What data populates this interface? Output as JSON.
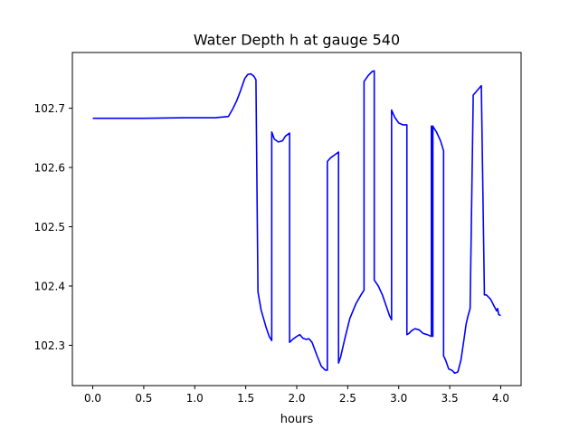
{
  "chart_data": {
    "type": "line",
    "title": "Water Depth h at gauge 540",
    "xlabel": "hours",
    "ylabel": "",
    "xlim": [
      -0.2,
      4.2
    ],
    "ylim": [
      102.232,
      102.794
    ],
    "xticks": [
      0.0,
      0.5,
      1.0,
      1.5,
      2.0,
      2.5,
      3.0,
      3.5,
      4.0
    ],
    "xtick_labels": [
      "0.0",
      "0.5",
      "1.0",
      "1.5",
      "2.0",
      "2.5",
      "3.0",
      "3.5",
      "4.0"
    ],
    "yticks": [
      102.3,
      102.4,
      102.5,
      102.6,
      102.7
    ],
    "ytick_labels": [
      "102.3",
      "102.4",
      "102.5",
      "102.6",
      "102.7"
    ],
    "grid": false,
    "series": [
      {
        "color": "#0000ff",
        "x": [
          0.0,
          0.5,
          0.9,
          1.2,
          1.33,
          1.37,
          1.41,
          1.45,
          1.49,
          1.52,
          1.55,
          1.58,
          1.6,
          1.62,
          1.62,
          1.65,
          1.7,
          1.73,
          1.755,
          1.755,
          1.78,
          1.82,
          1.86,
          1.89,
          1.93,
          1.93,
          1.96,
          2.0,
          2.03,
          2.06,
          2.09,
          2.12,
          2.15,
          2.2,
          2.24,
          2.28,
          2.3,
          2.3,
          2.33,
          2.37,
          2.41,
          2.41,
          2.43,
          2.47,
          2.52,
          2.58,
          2.63,
          2.66,
          2.66,
          2.7,
          2.74,
          2.76,
          2.76,
          2.8,
          2.84,
          2.87,
          2.91,
          2.93,
          2.93,
          2.96,
          3.0,
          3.04,
          3.08,
          3.08,
          3.1,
          3.13,
          3.16,
          3.2,
          3.24,
          3.28,
          3.32,
          3.32,
          3.33,
          3.335,
          3.335,
          3.34,
          3.34,
          3.37,
          3.41,
          3.44,
          3.44,
          3.46,
          3.49,
          3.52,
          3.55,
          3.58,
          3.61,
          3.64,
          3.66,
          3.68,
          3.7,
          3.73,
          3.73,
          3.77,
          3.81,
          3.84,
          3.84,
          3.86,
          3.9,
          3.93,
          3.96,
          3.97,
          3.98,
          4.0
        ],
        "y": [
          102.683,
          102.683,
          102.684,
          102.684,
          102.686,
          102.698,
          102.712,
          102.73,
          102.75,
          102.757,
          102.758,
          102.754,
          102.748,
          102.39,
          102.39,
          102.36,
          102.33,
          102.315,
          102.308,
          102.66,
          102.648,
          102.643,
          102.645,
          102.653,
          102.658,
          102.305,
          102.31,
          102.315,
          102.318,
          102.312,
          102.31,
          102.311,
          102.305,
          102.282,
          102.265,
          102.258,
          102.258,
          102.61,
          102.616,
          102.621,
          102.626,
          102.27,
          102.28,
          102.31,
          102.345,
          102.37,
          102.385,
          102.393,
          102.745,
          102.755,
          102.762,
          102.763,
          102.41,
          102.4,
          102.385,
          102.37,
          102.35,
          102.343,
          102.697,
          102.685,
          102.675,
          102.672,
          102.672,
          102.318,
          102.32,
          102.325,
          102.328,
          102.326,
          102.32,
          102.318,
          102.315,
          102.67,
          102.66,
          102.315,
          102.67,
          102.668,
          102.668,
          102.66,
          102.645,
          102.628,
          102.282,
          102.275,
          102.26,
          102.258,
          102.253,
          102.255,
          102.275,
          102.31,
          102.335,
          102.35,
          102.362,
          102.713,
          102.722,
          102.73,
          102.738,
          102.388,
          102.385,
          102.385,
          102.378,
          102.368,
          102.358,
          102.362,
          102.352,
          102.35
        ]
      }
    ]
  }
}
